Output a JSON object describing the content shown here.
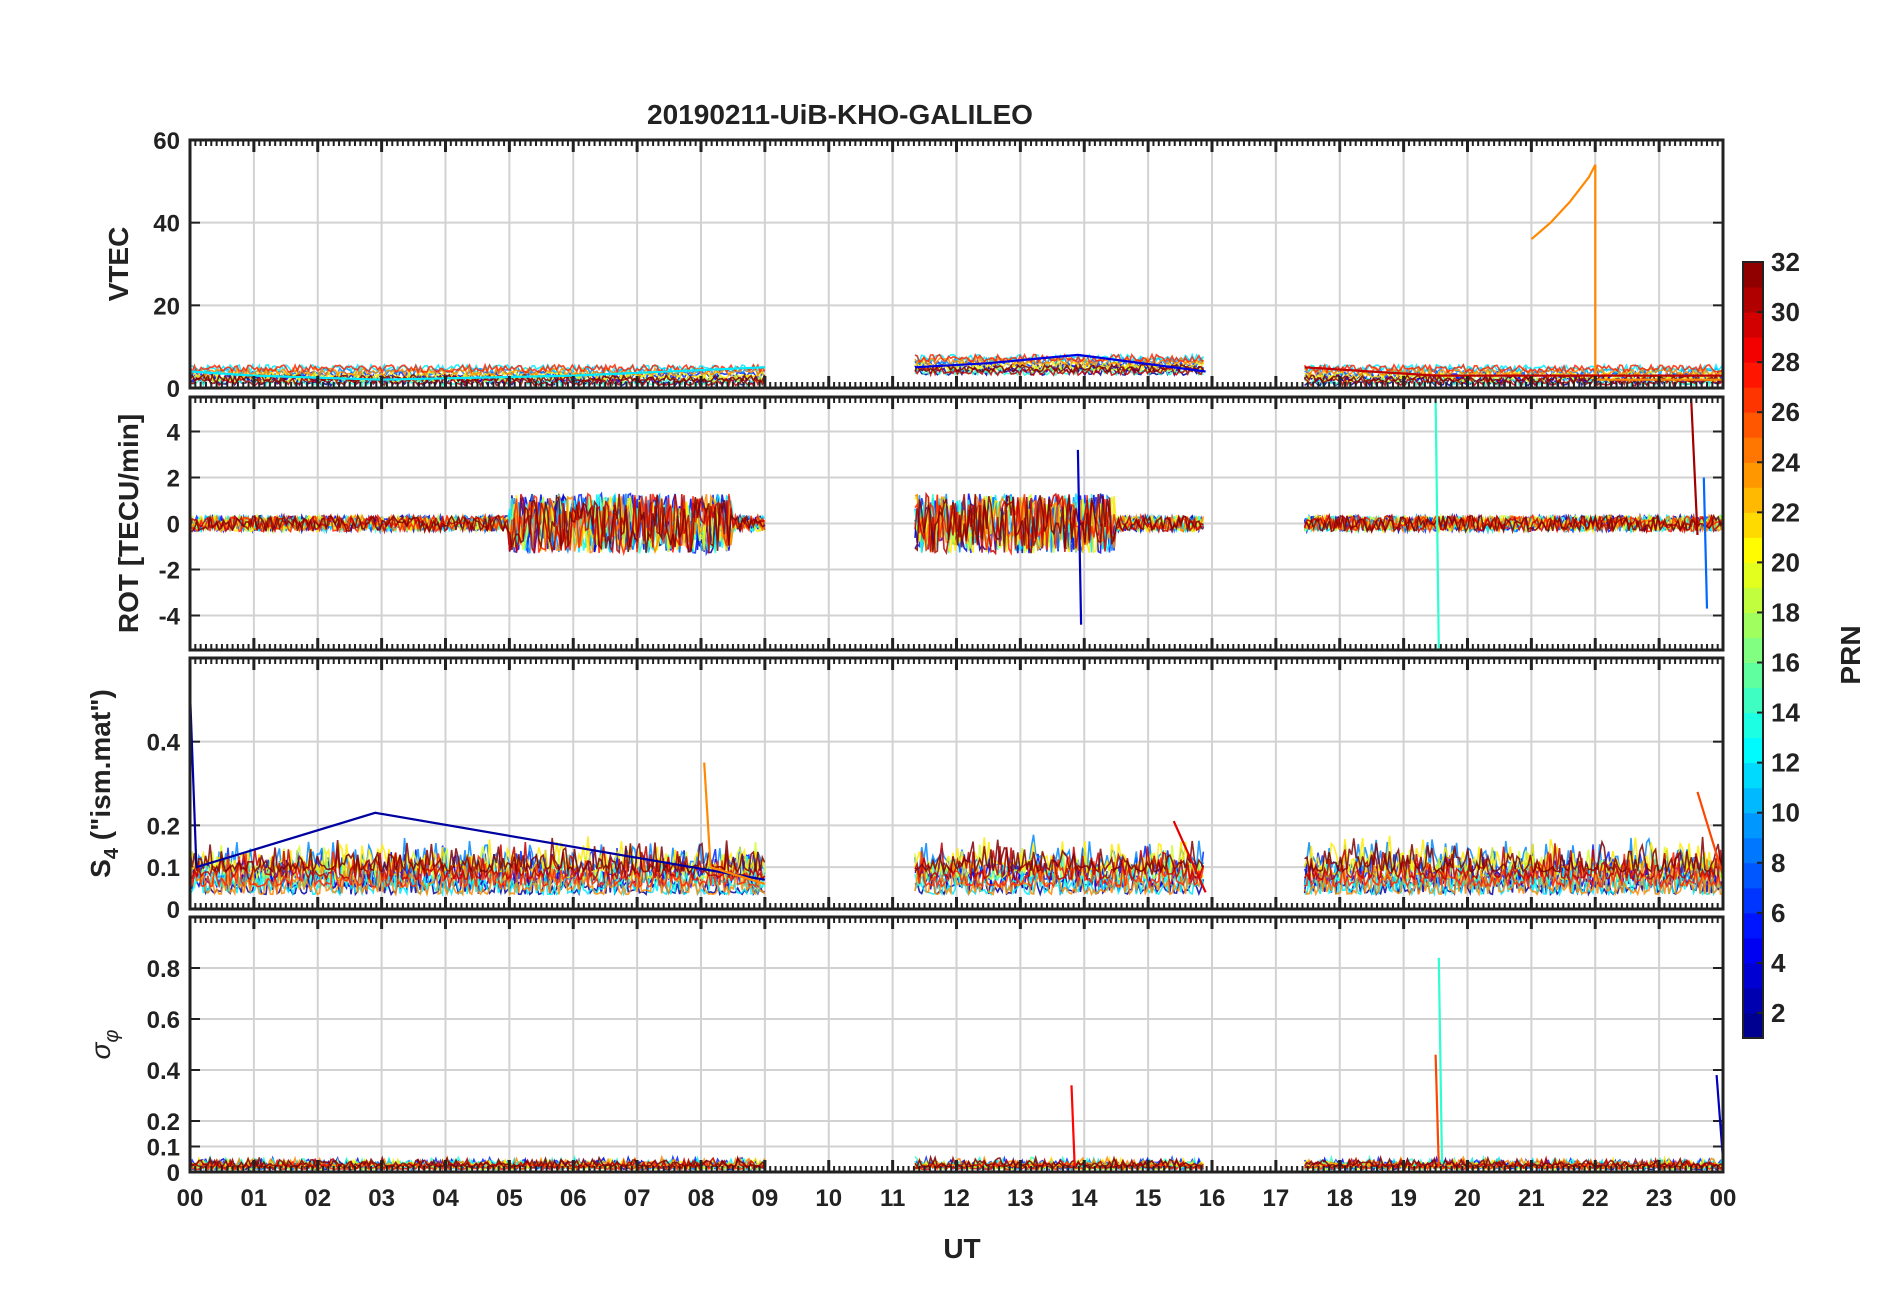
{
  "chart_data": {
    "type": "line",
    "title": "20190211-UiB-KHO-GALILEO",
    "xlabel": "UT",
    "x_tick_labels": [
      "00",
      "01",
      "02",
      "03",
      "04",
      "05",
      "06",
      "07",
      "08",
      "09",
      "10",
      "11",
      "12",
      "13",
      "14",
      "15",
      "16",
      "17",
      "18",
      "19",
      "20",
      "21",
      "22",
      "23",
      "00"
    ],
    "xlim": [
      0,
      24
    ],
    "grid": true,
    "data_gaps_hours": [
      [
        9.0,
        11.35
      ],
      [
        15.9,
        17.45
      ]
    ],
    "colorbar": {
      "label": "PRN",
      "colormap": "jet",
      "range": [
        1,
        32
      ],
      "tick_labels": [
        "2",
        "4",
        "6",
        "8",
        "10",
        "12",
        "14",
        "16",
        "18",
        "20",
        "22",
        "24",
        "26",
        "28",
        "30",
        "32"
      ]
    },
    "panels": [
      {
        "ylabel": "VTEC",
        "ylim": [
          0,
          60
        ],
        "y_tick_labels": [
          "0",
          "20",
          "40",
          "60"
        ],
        "series": [
          {
            "prn": 24,
            "points": [
              [
                21.0,
                36
              ],
              [
                21.3,
                40
              ],
              [
                21.6,
                45
              ],
              [
                21.9,
                51
              ],
              [
                22.0,
                54
              ],
              [
                22.0,
                2
              ],
              [
                24.0,
                2
              ]
            ]
          },
          {
            "prn": 12,
            "points": [
              [
                0.0,
                4
              ],
              [
                1.0,
                3
              ],
              [
                3.0,
                2
              ],
              [
                6.0,
                3
              ],
              [
                9.0,
                5
              ]
            ]
          },
          {
            "prn": 4,
            "points": [
              [
                11.35,
                5
              ],
              [
                12.5,
                6
              ],
              [
                13.9,
                8
              ],
              [
                15.9,
                4
              ]
            ]
          },
          {
            "prn": 30,
            "points": [
              [
                17.45,
                5
              ],
              [
                19.5,
                3
              ],
              [
                22.0,
                3
              ],
              [
                24.0,
                3
              ]
            ]
          }
        ]
      },
      {
        "ylabel": "ROT [TECU/min]",
        "ylim": [
          -5.5,
          5.5
        ],
        "y_tick_labels": [
          "-4",
          "-2",
          "0",
          "2",
          "4"
        ],
        "series": [
          {
            "prn": 3,
            "points": [
              [
                13.9,
                3.2
              ],
              [
                13.95,
                -4.4
              ]
            ]
          },
          {
            "prn": 14,
            "points": [
              [
                19.5,
                5.5
              ],
              [
                19.55,
                -5.5
              ]
            ]
          },
          {
            "prn": 31,
            "points": [
              [
                23.5,
                5.5
              ],
              [
                23.6,
                -0.5
              ]
            ]
          },
          {
            "prn": 8,
            "points": [
              [
                23.7,
                2.0
              ],
              [
                23.75,
                -3.7
              ]
            ]
          }
        ]
      },
      {
        "ylabel": "S4 (\"ism.mat\")",
        "ylabel_main": "S",
        "ylabel_sub": "4",
        "ylabel_rest": " (\"ism.mat\")",
        "ylim": [
          0,
          0.6
        ],
        "y_tick_labels": [
          "0",
          "0.1",
          "0.2",
          "0.4"
        ],
        "series": [
          {
            "prn": 2,
            "points": [
              [
                0.0,
                0.52
              ],
              [
                0.1,
                0.1
              ],
              [
                2.9,
                0.23
              ],
              [
                9.0,
                0.07
              ]
            ]
          },
          {
            "prn": 24,
            "points": [
              [
                8.05,
                0.35
              ],
              [
                8.15,
                0.1
              ],
              [
                9.0,
                0.06
              ]
            ]
          },
          {
            "prn": 29,
            "points": [
              [
                15.4,
                0.21
              ],
              [
                15.9,
                0.04
              ]
            ]
          },
          {
            "prn": 26,
            "points": [
              [
                23.6,
                0.28
              ],
              [
                24.0,
                0.08
              ]
            ]
          }
        ]
      },
      {
        "ylabel": "σ φ",
        "ylabel_main": "σ",
        "ylabel_sub": "φ",
        "ylim": [
          0,
          1.0
        ],
        "y_tick_labels": [
          "0",
          "0.1",
          "0.2",
          "0.4",
          "0.6",
          "0.8"
        ],
        "series": [
          {
            "prn": 14,
            "points": [
              [
                19.55,
                0.84
              ],
              [
                19.6,
                0.03
              ]
            ]
          },
          {
            "prn": 26,
            "points": [
              [
                19.5,
                0.46
              ],
              [
                19.55,
                0.02
              ]
            ]
          },
          {
            "prn": 28,
            "points": [
              [
                13.8,
                0.34
              ],
              [
                13.85,
                0.02
              ]
            ]
          },
          {
            "prn": 3,
            "points": [
              [
                23.9,
                0.38
              ],
              [
                24.0,
                0.05
              ]
            ]
          }
        ]
      }
    ]
  }
}
